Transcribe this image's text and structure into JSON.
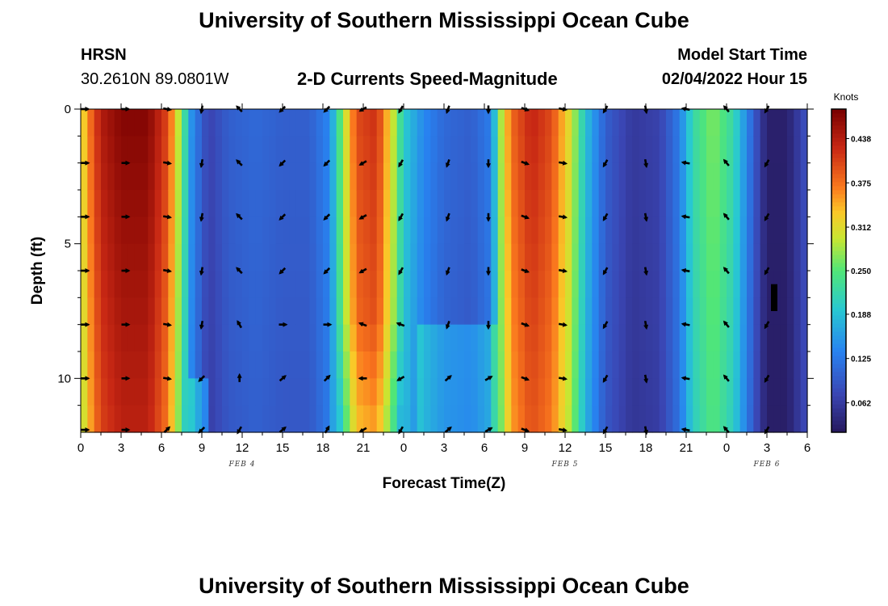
{
  "header": {
    "title": "University of Southern Mississippi Ocean Cube",
    "station": "HRSN",
    "coords": "30.2610N  89.0801W",
    "subtitle": "2-D Currents Speed-Magnitude",
    "model_start_label": "Model Start Time",
    "model_start_value": "02/04/2022 Hour 15"
  },
  "footer": {
    "title": "University of Southern Mississippi Ocean Cube"
  },
  "chart_data": {
    "type": "heatmap",
    "title": "2-D Currents Speed-Magnitude",
    "xlabel": "Forecast Time(Z)",
    "ylabel": "Depth (ft)",
    "xlim": [
      0,
      54
    ],
    "ylim": [
      12,
      0
    ],
    "x_ticks": [
      0,
      3,
      6,
      9,
      12,
      15,
      18,
      21,
      24,
      27,
      30,
      33,
      36,
      39,
      42,
      45,
      48,
      51,
      54
    ],
    "x_tick_labels": [
      "0",
      "3",
      "6",
      "9",
      "12",
      "15",
      "18",
      "21",
      "0",
      "3",
      "6",
      "9",
      "12",
      "15",
      "18",
      "21",
      "0",
      "3",
      "6"
    ],
    "y_ticks": [
      0,
      5,
      10
    ],
    "y_tick_labels": [
      "0",
      "5",
      "10"
    ],
    "date_labels": [
      {
        "x": 12,
        "text": "FEB 4"
      },
      {
        "x": 36,
        "text": "FEB 5"
      },
      {
        "x": 51,
        "text": "FEB 6"
      }
    ],
    "colorbar": {
      "title": "Knots",
      "min": 0.02,
      "max": 0.48,
      "ticks": [
        0.062,
        0.125,
        0.188,
        0.25,
        0.312,
        0.375,
        0.438
      ],
      "tick_labels": [
        "0.062",
        "0.125",
        "0.188",
        "0.250",
        "0.312",
        "0.375",
        "0.438"
      ]
    },
    "depth_rows": [
      0,
      2,
      4,
      6,
      8,
      10,
      12
    ],
    "speed_profile_by_hour": [
      {
        "t": 0,
        "v": 0.3
      },
      {
        "t": 0.5,
        "v": 0.36
      },
      {
        "t": 1.5,
        "v": 0.44
      },
      {
        "t": 3,
        "v": 0.47
      },
      {
        "t": 5,
        "v": 0.47
      },
      {
        "t": 6.5,
        "v": 0.4
      },
      {
        "t": 7.5,
        "v": 0.26
      },
      {
        "t": 8.3,
        "v": 0.14
      },
      {
        "t": 9.5,
        "v": 0.07
      },
      {
        "t": 11,
        "v": 0.1
      },
      {
        "t": 13,
        "v": 0.11
      },
      {
        "t": 15,
        "v": 0.1
      },
      {
        "t": 17,
        "v": 0.1
      },
      {
        "t": 18.5,
        "v": 0.14
      },
      {
        "t": 19.5,
        "v": 0.28
      },
      {
        "t": 20.5,
        "v": 0.4
      },
      {
        "t": 22,
        "v": 0.42
      },
      {
        "t": 23.2,
        "v": 0.3
      },
      {
        "t": 24,
        "v": 0.2
      },
      {
        "t": 25.5,
        "v": 0.14
      },
      {
        "t": 27,
        "v": 0.11
      },
      {
        "t": 29,
        "v": 0.1
      },
      {
        "t": 30.5,
        "v": 0.13
      },
      {
        "t": 31.2,
        "v": 0.28
      },
      {
        "t": 32,
        "v": 0.38
      },
      {
        "t": 33.5,
        "v": 0.43
      },
      {
        "t": 35,
        "v": 0.4
      },
      {
        "t": 36.5,
        "v": 0.3
      },
      {
        "t": 37.5,
        "v": 0.19
      },
      {
        "t": 39,
        "v": 0.1
      },
      {
        "t": 41,
        "v": 0.06
      },
      {
        "t": 43,
        "v": 0.07
      },
      {
        "t": 44.5,
        "v": 0.13
      },
      {
        "t": 45.5,
        "v": 0.22
      },
      {
        "t": 47,
        "v": 0.27
      },
      {
        "t": 48.5,
        "v": 0.22
      },
      {
        "t": 50,
        "v": 0.1
      },
      {
        "t": 51,
        "v": 0.03
      },
      {
        "t": 52.5,
        "v": 0.03
      },
      {
        "t": 54,
        "v": 0.09
      }
    ],
    "arrow_times": [
      0.3,
      3.3,
      6.4,
      9.0,
      11.8,
      15.0,
      18.3,
      21.0,
      23.8,
      27.3,
      30.3,
      33.0,
      35.8,
      39.0,
      42.0,
      45.0,
      48.0,
      51.0
    ],
    "arrow_depths": [
      0,
      2,
      4,
      6,
      8,
      10,
      12
    ],
    "arrow_directions_deg_by_time": [
      0,
      0,
      10,
      100,
      225,
      135,
      135,
      150,
      120,
      110,
      90,
      20,
      10,
      120,
      80,
      190,
      230,
      120
    ],
    "arrow_directions_deg_overrides": [
      {
        "time_index": 2,
        "depth_index": 6,
        "deg": 315
      },
      {
        "time_index": 3,
        "depth_index": 4,
        "deg": 100
      },
      {
        "time_index": 3,
        "depth_index": 5,
        "deg": 135
      },
      {
        "time_index": 3,
        "depth_index": 6,
        "deg": 135
      },
      {
        "time_index": 4,
        "depth_index": 4,
        "deg": 240
      },
      {
        "time_index": 4,
        "depth_index": 5,
        "deg": 270
      },
      {
        "time_index": 4,
        "depth_index": 6,
        "deg": 120
      },
      {
        "time_index": 5,
        "depth_index": 4,
        "deg": 0
      },
      {
        "time_index": 5,
        "depth_index": 5,
        "deg": 320
      },
      {
        "time_index": 5,
        "depth_index": 6,
        "deg": 320
      },
      {
        "time_index": 6,
        "depth_index": 4,
        "deg": 0
      },
      {
        "time_index": 6,
        "depth_index": 5,
        "deg": 315
      },
      {
        "time_index": 6,
        "depth_index": 6,
        "deg": 300
      },
      {
        "time_index": 7,
        "depth_index": 4,
        "deg": 200
      },
      {
        "time_index": 7,
        "depth_index": 5,
        "deg": 180
      },
      {
        "time_index": 8,
        "depth_index": 4,
        "deg": 200
      },
      {
        "time_index": 8,
        "depth_index": 5,
        "deg": 150
      },
      {
        "time_index": 9,
        "depth_index": 5,
        "deg": 320
      },
      {
        "time_index": 9,
        "depth_index": 6,
        "deg": 320
      },
      {
        "time_index": 10,
        "depth_index": 5,
        "deg": 330
      },
      {
        "time_index": 10,
        "depth_index": 6,
        "deg": 330
      }
    ],
    "notes": "Speed-magnitude heatmap of depth vs forecast hour with current direction vectors"
  }
}
